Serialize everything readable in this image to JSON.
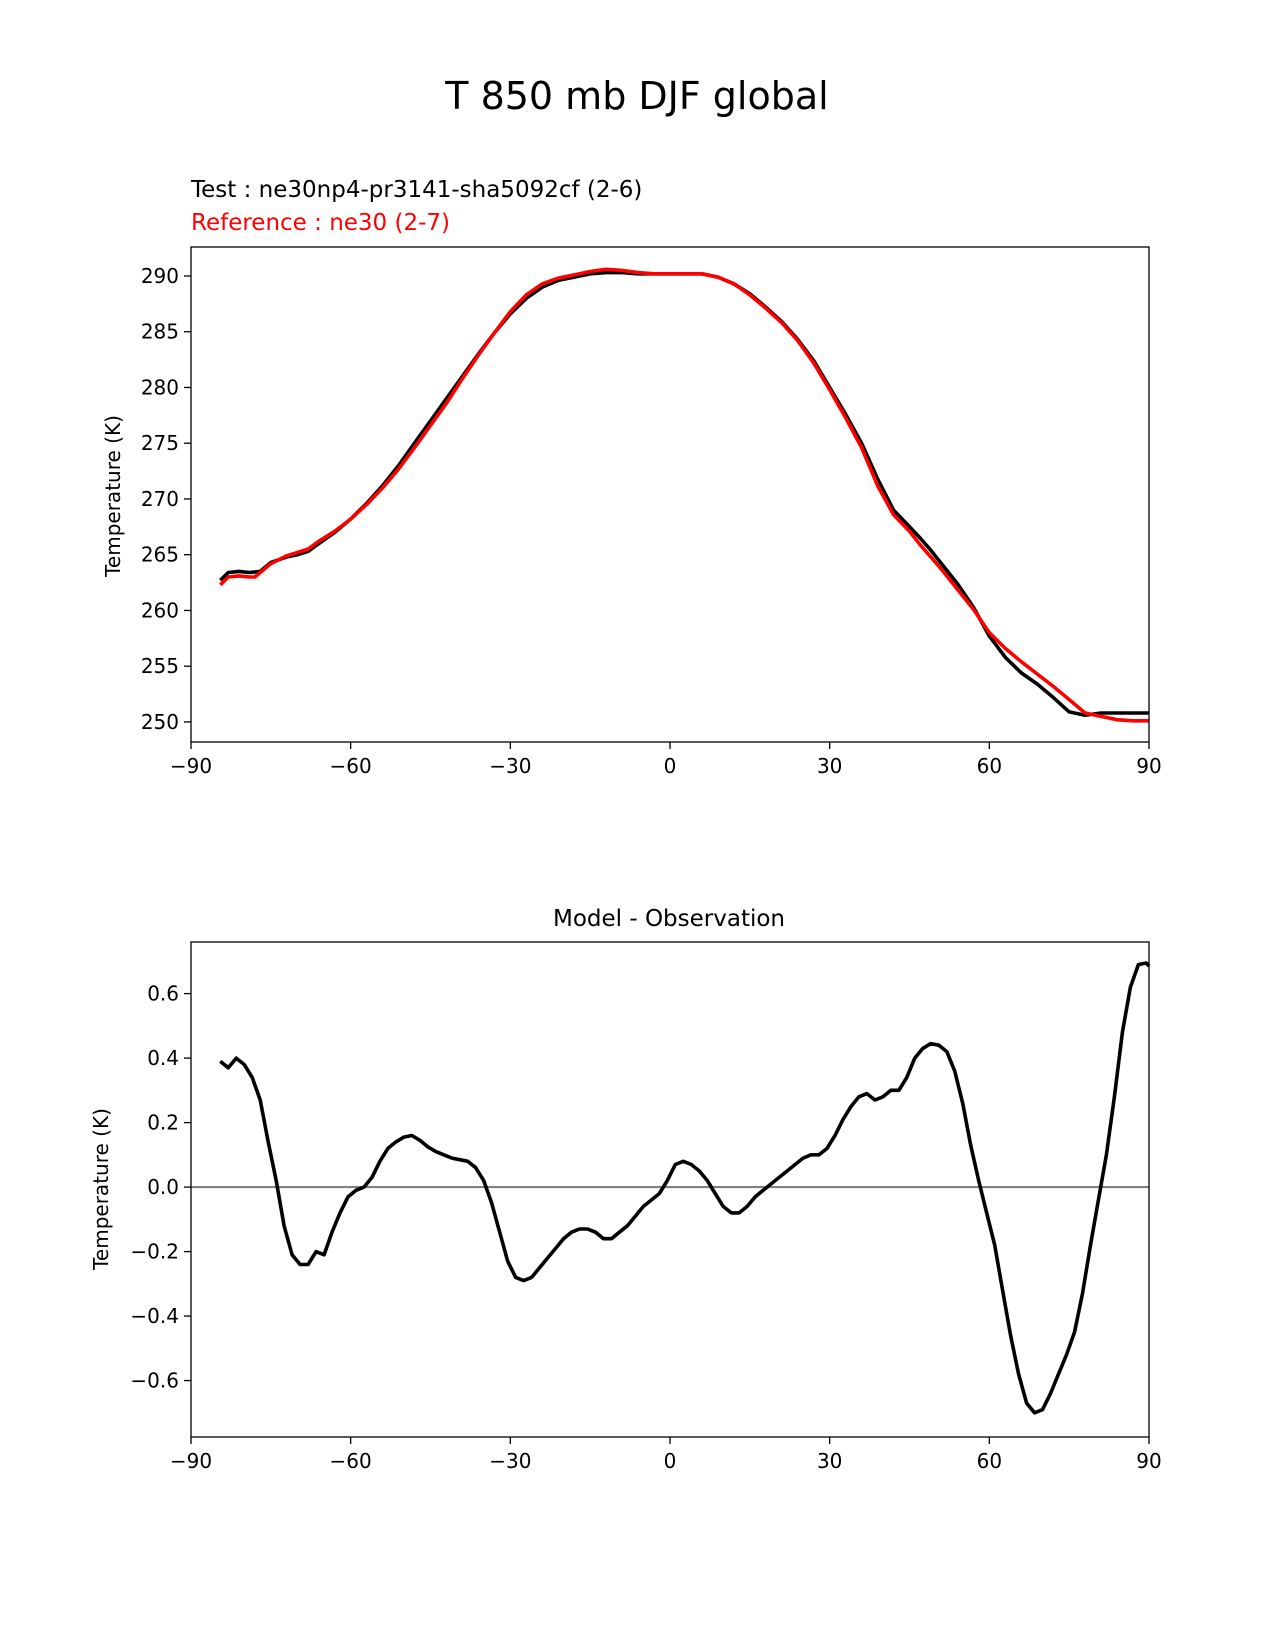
{
  "figure_title": "T 850 mb DJF global",
  "colors": {
    "test": "#000000",
    "reference": "#ff0000",
    "zero_line": "#808080",
    "axes": "#000000"
  },
  "chart_data": [
    {
      "type": "line",
      "title": "",
      "legend": {
        "test_label": "Test : ne30np4-pr3141-sha5092cf (2-6)",
        "reference_label": "Reference : ne30 (2-7)",
        "placement": "top-left"
      },
      "xlabel": "",
      "ylabel": "Temperature (K)",
      "xlim": [
        -90,
        90
      ],
      "ylim": [
        248.2,
        292.6
      ],
      "xticks": [
        -90,
        -60,
        -30,
        0,
        30,
        60,
        90
      ],
      "xtick_labels": [
        "−90",
        "−60",
        "−30",
        "0",
        "30",
        "60",
        "90"
      ],
      "yticks": [
        250,
        255,
        260,
        265,
        270,
        275,
        280,
        285,
        290
      ],
      "ytick_labels": [
        "250",
        "255",
        "260",
        "265",
        "270",
        "275",
        "280",
        "285",
        "290"
      ],
      "grid": false,
      "series": [
        {
          "name": "Test",
          "color": "#000000",
          "x": [
            -84.5,
            -83,
            -81,
            -79,
            -77,
            -75,
            -72,
            -70,
            -68,
            -66,
            -63,
            -60,
            -57,
            -54,
            -51,
            -48,
            -45,
            -42,
            -39,
            -36,
            -33,
            -30,
            -27,
            -24,
            -21,
            -18,
            -15,
            -12,
            -9,
            -6,
            -3,
            0,
            3,
            6,
            9,
            12,
            15,
            18,
            21,
            24,
            27,
            30,
            33,
            36,
            39,
            42,
            45,
            47,
            49,
            51,
            54,
            57,
            60,
            63,
            66,
            69,
            72,
            75,
            78,
            81,
            84,
            87,
            90
          ],
          "y": [
            262.7,
            263.4,
            263.5,
            263.4,
            263.5,
            264.3,
            264.8,
            265.0,
            265.3,
            266.0,
            267.0,
            268.2,
            269.6,
            271.2,
            273.0,
            275.0,
            277.0,
            279.0,
            281.0,
            283.0,
            284.9,
            286.6,
            288.0,
            289.0,
            289.6,
            289.9,
            290.2,
            290.3,
            290.3,
            290.2,
            290.2,
            290.2,
            290.2,
            290.2,
            289.9,
            289.3,
            288.4,
            287.2,
            285.9,
            284.3,
            282.4,
            280.0,
            277.6,
            275.0,
            271.8,
            269.0,
            267.5,
            266.5,
            265.4,
            264.2,
            262.4,
            260.3,
            257.7,
            255.8,
            254.4,
            253.4,
            252.2,
            250.9,
            250.6,
            250.8,
            250.8,
            250.8,
            250.8
          ]
        },
        {
          "name": "Reference",
          "color": "#ff0000",
          "x": [
            -84.5,
            -83,
            -81,
            -79,
            -78,
            -77,
            -75,
            -72,
            -70,
            -68,
            -66,
            -63,
            -60,
            -57,
            -54,
            -51,
            -48,
            -45,
            -42,
            -39,
            -36,
            -33,
            -30,
            -27,
            -24,
            -21,
            -18,
            -15,
            -12,
            -9,
            -6,
            -3,
            0,
            3,
            6,
            9,
            12,
            15,
            18,
            21,
            24,
            27,
            30,
            33,
            36,
            39,
            42,
            45,
            47,
            49,
            51,
            54,
            57,
            60,
            63,
            66,
            69,
            72,
            75,
            78,
            81,
            84,
            87,
            90
          ],
          "y": [
            262.3,
            263.0,
            263.1,
            263.0,
            263.0,
            263.4,
            264.2,
            264.9,
            265.2,
            265.5,
            266.2,
            267.1,
            268.2,
            269.5,
            271.0,
            272.7,
            274.6,
            276.6,
            278.6,
            280.8,
            282.9,
            284.9,
            286.8,
            288.3,
            289.3,
            289.8,
            290.1,
            290.4,
            290.6,
            290.5,
            290.3,
            290.2,
            290.2,
            290.2,
            290.2,
            289.9,
            289.3,
            288.3,
            287.1,
            285.8,
            284.2,
            282.2,
            279.8,
            277.3,
            274.6,
            271.2,
            268.6,
            267.1,
            265.9,
            264.8,
            263.7,
            261.9,
            260.1,
            258.0,
            256.6,
            255.4,
            254.3,
            253.2,
            252.0,
            250.8,
            250.5,
            250.2,
            250.1,
            250.1
          ]
        }
      ]
    },
    {
      "type": "line",
      "title": "Model - Observation",
      "xlabel": "",
      "ylabel": "Temperature (K)",
      "xlim": [
        -90,
        90
      ],
      "ylim": [
        -0.775,
        0.76
      ],
      "xticks": [
        -90,
        -60,
        -30,
        0,
        30,
        60,
        90
      ],
      "xtick_labels": [
        "−90",
        "−60",
        "−30",
        "0",
        "30",
        "60",
        "90"
      ],
      "yticks": [
        -0.6,
        -0.4,
        -0.2,
        0.0,
        0.2,
        0.4,
        0.6
      ],
      "ytick_labels": [
        "−0.6",
        "−0.4",
        "−0.2",
        "0.0",
        "0.2",
        "0.4",
        "0.6"
      ],
      "zero_line": 0,
      "grid": false,
      "series": [
        {
          "name": "Model - Observation",
          "color": "#000000",
          "x": [
            -84.5,
            -83,
            -81.5,
            -80,
            -78.5,
            -77,
            -75.5,
            -74,
            -72.5,
            -71,
            -69.5,
            -68,
            -66.5,
            -65,
            -63.5,
            -62,
            -60.5,
            -59,
            -57.5,
            -56,
            -54.5,
            -53,
            -51.5,
            -50,
            -48.5,
            -47,
            -45.5,
            -44,
            -42.5,
            -41,
            -39.5,
            -38,
            -36.5,
            -35,
            -33.5,
            -32,
            -30.5,
            -29,
            -27.5,
            -26,
            -24.5,
            -23,
            -21.5,
            -20,
            -18.5,
            -17,
            -15.5,
            -14,
            -12.5,
            -11,
            -9.5,
            -8,
            -6.5,
            -5,
            -3.5,
            -2,
            -0.5,
            1,
            2.5,
            4,
            5.5,
            7,
            8.5,
            10,
            11.5,
            13,
            14.5,
            16,
            17.5,
            19,
            20.5,
            22,
            23.5,
            25,
            26.5,
            28,
            29.5,
            31,
            32.5,
            34,
            35.5,
            37,
            38.5,
            40,
            41.5,
            43,
            44.5,
            46,
            47.5,
            49,
            50.5,
            52,
            53.5,
            55,
            56.5,
            58,
            59.5,
            61,
            62.5,
            64,
            65.5,
            67,
            68.5,
            70,
            71.5,
            73,
            74.5,
            76,
            77.5,
            79,
            80.5,
            82,
            83.5,
            85,
            86.5,
            88,
            89.5,
            90
          ],
          "y": [
            0.39,
            0.37,
            0.4,
            0.38,
            0.34,
            0.27,
            0.14,
            0.02,
            -0.12,
            -0.21,
            -0.24,
            -0.24,
            -0.2,
            -0.21,
            -0.14,
            -0.08,
            -0.03,
            -0.01,
            0.0,
            0.03,
            0.08,
            0.12,
            0.14,
            0.155,
            0.16,
            0.145,
            0.125,
            0.11,
            0.1,
            0.09,
            0.085,
            0.08,
            0.06,
            0.02,
            -0.05,
            -0.14,
            -0.23,
            -0.28,
            -0.29,
            -0.28,
            -0.25,
            -0.22,
            -0.19,
            -0.16,
            -0.14,
            -0.13,
            -0.13,
            -0.14,
            -0.16,
            -0.16,
            -0.14,
            -0.12,
            -0.09,
            -0.06,
            -0.04,
            -0.02,
            0.02,
            0.07,
            0.08,
            0.07,
            0.05,
            0.02,
            -0.02,
            -0.06,
            -0.08,
            -0.08,
            -0.06,
            -0.03,
            -0.01,
            0.01,
            0.03,
            0.05,
            0.07,
            0.09,
            0.1,
            0.1,
            0.12,
            0.16,
            0.21,
            0.25,
            0.28,
            0.29,
            0.27,
            0.28,
            0.3,
            0.3,
            0.34,
            0.4,
            0.43,
            0.445,
            0.44,
            0.42,
            0.36,
            0.26,
            0.13,
            0.02,
            -0.08,
            -0.18,
            -0.32,
            -0.46,
            -0.58,
            -0.67,
            -0.7,
            -0.69,
            -0.64,
            -0.58,
            -0.52,
            -0.45,
            -0.33,
            -0.18,
            -0.04,
            0.1,
            0.28,
            0.48,
            0.62,
            0.69,
            0.695,
            0.685
          ]
        }
      ]
    }
  ]
}
